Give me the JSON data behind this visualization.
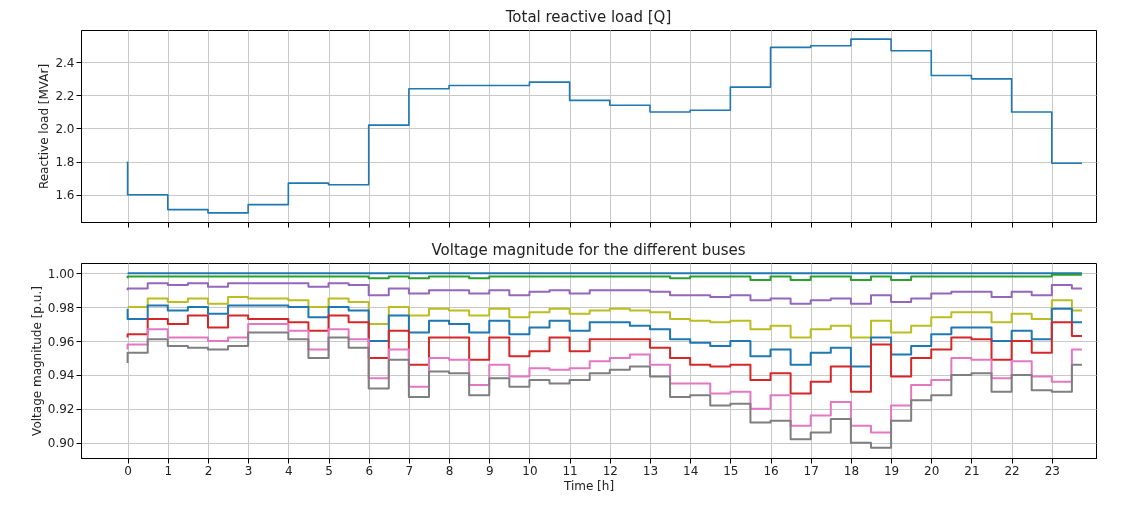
{
  "chart_data": [
    {
      "type": "step",
      "title": "Total reactive load [Q]",
      "ylabel": "Reactive load [MVAr]",
      "color": "#1f77b4",
      "x": [
        0,
        1,
        2,
        3,
        4,
        5,
        6,
        7,
        8,
        9,
        10,
        11,
        12,
        13,
        14,
        15,
        16,
        17,
        18,
        19,
        20,
        21,
        22,
        23,
        23.75
      ],
      "values": [
        1.8,
        1.6,
        1.51,
        1.49,
        1.54,
        1.67,
        1.66,
        2.02,
        2.24,
        2.26,
        2.26,
        2.28,
        2.17,
        2.14,
        2.1,
        2.11,
        2.25,
        2.49,
        2.5,
        2.54,
        2.47,
        2.32,
        2.3,
        2.1,
        1.79
      ],
      "xlim": [
        -1.16,
        24.1
      ],
      "ylim": [
        1.435,
        2.595
      ],
      "xticks": [
        0,
        1,
        2,
        3,
        4,
        5,
        6,
        7,
        8,
        9,
        10,
        11,
        12,
        13,
        14,
        15,
        16,
        17,
        18,
        19,
        20,
        21,
        22,
        23
      ],
      "yticks": [
        {
          "value": 1.6,
          "label": "1.6"
        },
        {
          "value": 1.8,
          "label": "1.8"
        },
        {
          "value": 2.0,
          "label": "2.0"
        },
        {
          "value": 2.2,
          "label": "2.2"
        },
        {
          "value": 2.4,
          "label": "2.4"
        }
      ],
      "grid": true,
      "tick_labels": "y"
    },
    {
      "type": "step",
      "title": "Voltage magnitude for the different buses",
      "xlabel": "Time [h]",
      "ylabel": "Voltage magnitude [p.u.]",
      "x": [
        0,
        0.5,
        1,
        1.5,
        2,
        2.5,
        3,
        3.5,
        4,
        4.5,
        5,
        5.5,
        6,
        6.5,
        7,
        7.5,
        8,
        8.5,
        9,
        9.5,
        10,
        10.5,
        11,
        11.5,
        12,
        12.5,
        13,
        13.5,
        14,
        14.5,
        15,
        15.5,
        16,
        16.5,
        17,
        17.5,
        18,
        18.5,
        19,
        19.5,
        20,
        20.5,
        21,
        21.5,
        22,
        22.5,
        23,
        23.5,
        23.75
      ],
      "series": [
        {
          "color": "#1f77b4",
          "values": [
            1.0,
            1.0,
            1.0,
            1.0,
            1.0,
            1.0,
            1.0,
            1.0,
            1.0,
            1.0,
            1.0,
            1.0,
            1.0,
            1.0,
            1.0,
            1.0,
            1.0,
            1.0,
            1.0,
            1.0,
            1.0,
            1.0,
            1.0,
            1.0,
            1.0,
            1.0,
            1.0,
            1.0,
            1.0,
            1.0,
            1.0,
            1.0,
            1.0,
            1.0,
            1.0,
            1.0,
            1.0,
            1.0,
            1.0,
            1.0,
            1.0,
            1.0,
            1.0,
            1.0,
            1.0,
            1.0,
            1.0,
            1.0,
            1.0
          ]
        },
        {
          "color": "#2ca02c",
          "values": [
            0.997,
            0.998,
            0.998,
            0.998,
            0.998,
            0.998,
            0.998,
            0.998,
            0.998,
            0.998,
            0.998,
            0.998,
            0.998,
            0.997,
            0.998,
            0.997,
            0.998,
            0.998,
            0.997,
            0.998,
            0.998,
            0.998,
            0.998,
            0.998,
            0.998,
            0.998,
            0.998,
            0.998,
            0.997,
            0.998,
            0.998,
            0.998,
            0.996,
            0.998,
            0.996,
            0.998,
            0.998,
            0.996,
            0.998,
            0.996,
            0.998,
            0.998,
            0.998,
            0.998,
            0.998,
            0.998,
            0.998,
            0.999,
            0.999
          ]
        },
        {
          "color": "#9467bd",
          "values": [
            0.99,
            0.991,
            0.994,
            0.993,
            0.994,
            0.992,
            0.994,
            0.994,
            0.994,
            0.994,
            0.992,
            0.994,
            0.993,
            0.987,
            0.991,
            0.988,
            0.99,
            0.99,
            0.988,
            0.99,
            0.987,
            0.989,
            0.99,
            0.988,
            0.99,
            0.99,
            0.99,
            0.989,
            0.987,
            0.987,
            0.986,
            0.987,
            0.984,
            0.985,
            0.982,
            0.984,
            0.985,
            0.982,
            0.987,
            0.983,
            0.985,
            0.988,
            0.989,
            0.989,
            0.986,
            0.989,
            0.987,
            0.993,
            0.991
          ]
        },
        {
          "color": "#bcbd22",
          "values": [
            0.98,
            0.98,
            0.985,
            0.983,
            0.985,
            0.982,
            0.986,
            0.985,
            0.985,
            0.984,
            0.98,
            0.985,
            0.983,
            0.97,
            0.98,
            0.975,
            0.979,
            0.978,
            0.975,
            0.979,
            0.974,
            0.977,
            0.979,
            0.976,
            0.978,
            0.979,
            0.978,
            0.977,
            0.973,
            0.972,
            0.971,
            0.972,
            0.967,
            0.969,
            0.962,
            0.967,
            0.969,
            0.962,
            0.972,
            0.965,
            0.969,
            0.974,
            0.977,
            0.977,
            0.971,
            0.976,
            0.973,
            0.984,
            0.978
          ]
        },
        {
          "color": "#1f77b4",
          "values": [
            0.979,
            0.973,
            0.981,
            0.978,
            0.98,
            0.976,
            0.981,
            0.981,
            0.981,
            0.98,
            0.974,
            0.98,
            0.978,
            0.96,
            0.975,
            0.965,
            0.972,
            0.97,
            0.965,
            0.972,
            0.964,
            0.968,
            0.972,
            0.966,
            0.971,
            0.971,
            0.969,
            0.967,
            0.961,
            0.959,
            0.957,
            0.96,
            0.951,
            0.955,
            0.946,
            0.953,
            0.956,
            0.945,
            0.962,
            0.952,
            0.957,
            0.964,
            0.968,
            0.968,
            0.96,
            0.966,
            0.961,
            0.979,
            0.971
          ]
        },
        {
          "color": "#d62728",
          "values": [
            0.962,
            0.964,
            0.973,
            0.97,
            0.975,
            0.968,
            0.975,
            0.973,
            0.973,
            0.971,
            0.966,
            0.975,
            0.971,
            0.95,
            0.966,
            0.946,
            0.962,
            0.962,
            0.949,
            0.962,
            0.951,
            0.954,
            0.962,
            0.954,
            0.961,
            0.961,
            0.961,
            0.956,
            0.95,
            0.946,
            0.945,
            0.946,
            0.937,
            0.941,
            0.929,
            0.936,
            0.945,
            0.93,
            0.958,
            0.939,
            0.95,
            0.955,
            0.962,
            0.961,
            0.949,
            0.96,
            0.953,
            0.971,
            0.963
          ]
        },
        {
          "color": "#e377c2",
          "values": [
            0.955,
            0.958,
            0.967,
            0.962,
            0.962,
            0.96,
            0.962,
            0.97,
            0.97,
            0.966,
            0.955,
            0.967,
            0.961,
            0.938,
            0.955,
            0.933,
            0.95,
            0.949,
            0.934,
            0.946,
            0.939,
            0.944,
            0.943,
            0.944,
            0.948,
            0.95,
            0.952,
            0.946,
            0.935,
            0.935,
            0.929,
            0.93,
            0.92,
            0.928,
            0.91,
            0.916,
            0.924,
            0.91,
            0.906,
            0.922,
            0.934,
            0.937,
            0.95,
            0.949,
            0.938,
            0.948,
            0.939,
            0.936,
            0.955
          ]
        },
        {
          "color": "#7f7f7f",
          "values": [
            0.947,
            0.953,
            0.961,
            0.957,
            0.956,
            0.955,
            0.957,
            0.965,
            0.965,
            0.961,
            0.95,
            0.962,
            0.956,
            0.932,
            0.949,
            0.927,
            0.942,
            0.941,
            0.928,
            0.938,
            0.933,
            0.937,
            0.935,
            0.937,
            0.941,
            0.943,
            0.945,
            0.939,
            0.927,
            0.928,
            0.922,
            0.923,
            0.912,
            0.913,
            0.902,
            0.906,
            0.914,
            0.9,
            0.897,
            0.913,
            0.925,
            0.928,
            0.94,
            0.941,
            0.93,
            0.94,
            0.931,
            0.93,
            0.946
          ]
        }
      ],
      "xlim": [
        -1.16,
        24.1
      ],
      "ylim": [
        0.891,
        1.006
      ],
      "xticks": [
        0,
        1,
        2,
        3,
        4,
        5,
        6,
        7,
        8,
        9,
        10,
        11,
        12,
        13,
        14,
        15,
        16,
        17,
        18,
        19,
        20,
        21,
        22,
        23
      ],
      "yticks": [
        {
          "value": 0.9,
          "label": "0.90"
        },
        {
          "value": 0.92,
          "label": "0.92"
        },
        {
          "value": 0.94,
          "label": "0.94"
        },
        {
          "value": 0.96,
          "label": "0.96"
        },
        {
          "value": 0.98,
          "label": "0.98"
        },
        {
          "value": 1.0,
          "label": "1.00"
        }
      ],
      "grid": true
    }
  ]
}
